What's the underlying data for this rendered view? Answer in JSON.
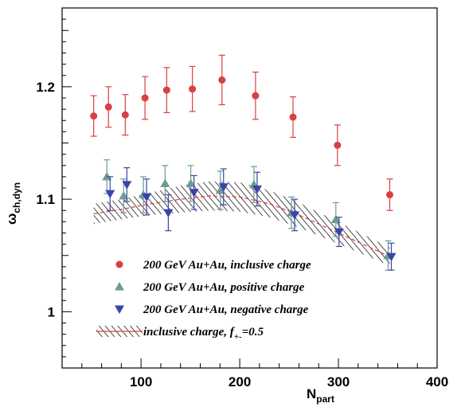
{
  "chart_data": {
    "type": "scatter",
    "xlabel": {
      "main": "N",
      "sub": "part"
    },
    "ylabel": {
      "main": "ω",
      "sub": "ch,dyn"
    },
    "xlim": [
      20,
      400
    ],
    "ylim": [
      0.95,
      1.27
    ],
    "xticks": [
      100,
      200,
      300,
      400
    ],
    "xtick_labels": [
      "100",
      "200",
      "300",
      "400"
    ],
    "yticks": [
      1.0,
      1.1,
      1.2
    ],
    "ytick_labels": [
      "1",
      "1.1",
      "1.2"
    ],
    "grid": false,
    "legend_position": "lower-left",
    "series": [
      {
        "name": "200 GeV Au+Au, inclusive charge",
        "marker": "circle",
        "color": "#d94040",
        "x": [
          52,
          67,
          84,
          104,
          126,
          152,
          182,
          216,
          254,
          299,
          352
        ],
        "y": [
          1.174,
          1.182,
          1.175,
          1.19,
          1.197,
          1.198,
          1.206,
          1.192,
          1.173,
          1.148,
          1.104
        ],
        "err": [
          0.018,
          0.018,
          0.018,
          0.019,
          0.02,
          0.02,
          0.022,
          0.021,
          0.018,
          0.018,
          0.014
        ]
      },
      {
        "name": "200 GeV Au+Au, positive charge",
        "marker": "triangle-up",
        "color": "#6f9a94",
        "x": [
          67,
          84,
          104,
          126,
          152,
          182,
          216,
          254,
          299,
          352
        ],
        "y": [
          1.12,
          1.103,
          1.104,
          1.114,
          1.114,
          1.108,
          1.113,
          1.088,
          1.082,
          1.05
        ],
        "err": [
          0.015,
          0.015,
          0.016,
          0.016,
          0.016,
          0.017,
          0.016,
          0.014,
          0.015,
          0.013
        ]
      },
      {
        "name": "200 GeV Au+Au, negative charge",
        "marker": "triangle-down",
        "color": "#3a44a8",
        "x": [
          67,
          84,
          104,
          126,
          152,
          182,
          216,
          254,
          299,
          352
        ],
        "y": [
          1.105,
          1.113,
          1.102,
          1.088,
          1.106,
          1.111,
          1.109,
          1.086,
          1.071,
          1.049
        ],
        "err": [
          0.015,
          0.015,
          0.016,
          0.016,
          0.015,
          0.016,
          0.015,
          0.014,
          0.013,
          0.012
        ]
      }
    ],
    "band": {
      "name": "inclusive charge, f",
      "name_sub": "+-",
      "name_suffix": "=0.5",
      "line_color": "#d94040",
      "x": [
        52,
        80,
        110,
        140,
        170,
        200,
        230,
        260,
        290,
        320,
        352
      ],
      "center": [
        1.087,
        1.091,
        1.096,
        1.1,
        1.103,
        1.102,
        1.096,
        1.086,
        1.074,
        1.062,
        1.049
      ],
      "halfwidth": [
        0.009,
        0.009,
        0.01,
        0.012,
        0.013,
        0.013,
        0.012,
        0.011,
        0.01,
        0.009,
        0.008
      ]
    }
  }
}
